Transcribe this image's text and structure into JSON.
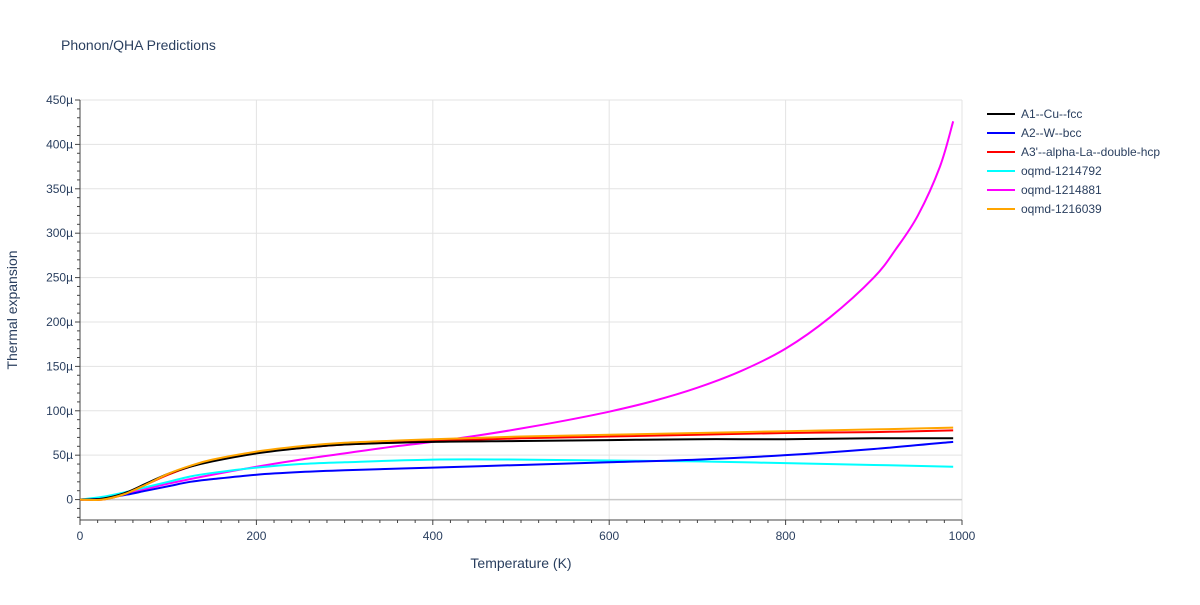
{
  "chart_data": {
    "type": "line",
    "title": "Phonon/QHA Predictions",
    "xlabel": "Temperature (K)",
    "ylabel": "Thermal expansion",
    "xlim": [
      0,
      1000
    ],
    "ylim": [
      -23,
      450
    ],
    "x_ticks": [
      0,
      200,
      400,
      600,
      800,
      1000
    ],
    "y_ticks": [
      0,
      50,
      100,
      150,
      200,
      250,
      300,
      350,
      400,
      450
    ],
    "y_tick_labels": [
      "0",
      "50µ",
      "100µ",
      "150µ",
      "200µ",
      "250µ",
      "300µ",
      "350µ",
      "400µ",
      "450µ"
    ],
    "y_unit_note": "values in units of 1e-6 (µ)",
    "grid": true,
    "legend_position": "right",
    "series": [
      {
        "name": "A1--Cu--fcc",
        "color": "#000000",
        "x": [
          0,
          25,
          50,
          75,
          100,
          125,
          150,
          200,
          250,
          300,
          400,
          500,
          600,
          700,
          800,
          900,
          990
        ],
        "y": [
          0,
          1,
          7,
          18,
          29,
          37,
          43,
          52,
          58,
          62,
          65,
          66,
          67,
          68,
          68,
          69,
          69
        ]
      },
      {
        "name": "A2--W--bcc",
        "color": "#0000ff",
        "x": [
          0,
          25,
          50,
          75,
          100,
          125,
          150,
          200,
          250,
          300,
          400,
          500,
          600,
          700,
          800,
          900,
          990
        ],
        "y": [
          0,
          1,
          5,
          10,
          15,
          20,
          23,
          28,
          31,
          33,
          36,
          39,
          42,
          45,
          50,
          57,
          65
        ]
      },
      {
        "name": "A3'--alpha-La--double-hcp",
        "color": "#ff0000",
        "x": [
          0,
          25,
          50,
          75,
          100,
          125,
          150,
          200,
          250,
          300,
          400,
          500,
          600,
          700,
          800,
          900,
          990
        ],
        "y": [
          0,
          0,
          6,
          17,
          28,
          37,
          44,
          53,
          58,
          62,
          66,
          69,
          71,
          73,
          75,
          76,
          78
        ]
      },
      {
        "name": "oqmd-1214792",
        "color": "#00ffff",
        "x": [
          0,
          25,
          50,
          75,
          100,
          125,
          150,
          200,
          250,
          300,
          400,
          500,
          600,
          700,
          800,
          900,
          990
        ],
        "y": [
          0,
          3,
          8,
          14,
          20,
          26,
          30,
          36,
          40,
          42,
          45,
          45,
          44,
          43,
          41,
          39,
          37
        ]
      },
      {
        "name": "oqmd-1214881",
        "color": "#ff00ff",
        "x": [
          0,
          25,
          50,
          75,
          100,
          150,
          200,
          250,
          300,
          350,
          400,
          450,
          500,
          550,
          600,
          650,
          700,
          750,
          800,
          850,
          900,
          925,
          950,
          975,
          990
        ],
        "y": [
          0,
          2,
          6,
          12,
          18,
          28,
          37,
          45,
          52,
          59,
          65,
          72,
          80,
          89,
          99,
          111,
          126,
          145,
          170,
          205,
          250,
          282,
          320,
          375,
          426
        ]
      },
      {
        "name": "oqmd-1216039",
        "color": "#ffa500",
        "x": [
          0,
          25,
          50,
          75,
          100,
          125,
          150,
          200,
          250,
          300,
          400,
          500,
          600,
          700,
          800,
          900,
          990
        ],
        "y": [
          0,
          0,
          6,
          17,
          29,
          38,
          45,
          54,
          60,
          64,
          68,
          71,
          73,
          75,
          77,
          79,
          81
        ]
      }
    ]
  }
}
